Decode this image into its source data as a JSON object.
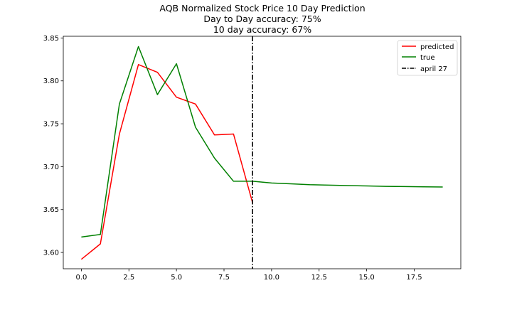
{
  "chart_data": {
    "type": "line",
    "title_lines": [
      "AQB Normalized Stock Price 10 Day Prediction",
      "Day to Day accuracy: 75%",
      "10 day accuracy: 67%"
    ],
    "xlabel": "",
    "ylabel": "",
    "xlim": [
      -0.95,
      19.95
    ],
    "ylim": [
      3.581,
      3.852
    ],
    "x_ticks": [
      0.0,
      2.5,
      5.0,
      7.5,
      10.0,
      12.5,
      15.0,
      17.5
    ],
    "x_tick_labels": [
      "0.0",
      "2.5",
      "5.0",
      "7.5",
      "10.0",
      "12.5",
      "15.0",
      "17.5"
    ],
    "y_ticks": [
      3.6,
      3.65,
      3.7,
      3.75,
      3.8,
      3.85
    ],
    "y_tick_labels": [
      "3.60",
      "3.65",
      "3.70",
      "3.75",
      "3.80",
      "3.85"
    ],
    "grid": false,
    "legend_position": "top-right",
    "series": [
      {
        "name": "predicted",
        "color": "#ff0000",
        "style": "solid",
        "x": [
          0,
          1,
          2,
          3,
          4,
          5,
          6,
          7,
          8,
          9
        ],
        "y": [
          3.592,
          3.61,
          3.738,
          3.819,
          3.81,
          3.781,
          3.773,
          3.737,
          3.738,
          3.658
        ]
      },
      {
        "name": "true",
        "color": "#008000",
        "style": "solid",
        "x": [
          0,
          1,
          2,
          3,
          4,
          5,
          6,
          7,
          8,
          9,
          10,
          11,
          12,
          13,
          14,
          15,
          16,
          17,
          18,
          19
        ],
        "y": [
          3.618,
          3.621,
          3.773,
          3.84,
          3.784,
          3.82,
          3.746,
          3.71,
          3.683,
          3.683,
          3.681,
          3.68,
          3.679,
          3.6785,
          3.678,
          3.6775,
          3.677,
          3.6768,
          3.6765,
          3.6763
        ]
      }
    ],
    "vlines": [
      {
        "name": "april 27",
        "x": 9,
        "color": "#000000",
        "style": "dashdot"
      }
    ]
  }
}
